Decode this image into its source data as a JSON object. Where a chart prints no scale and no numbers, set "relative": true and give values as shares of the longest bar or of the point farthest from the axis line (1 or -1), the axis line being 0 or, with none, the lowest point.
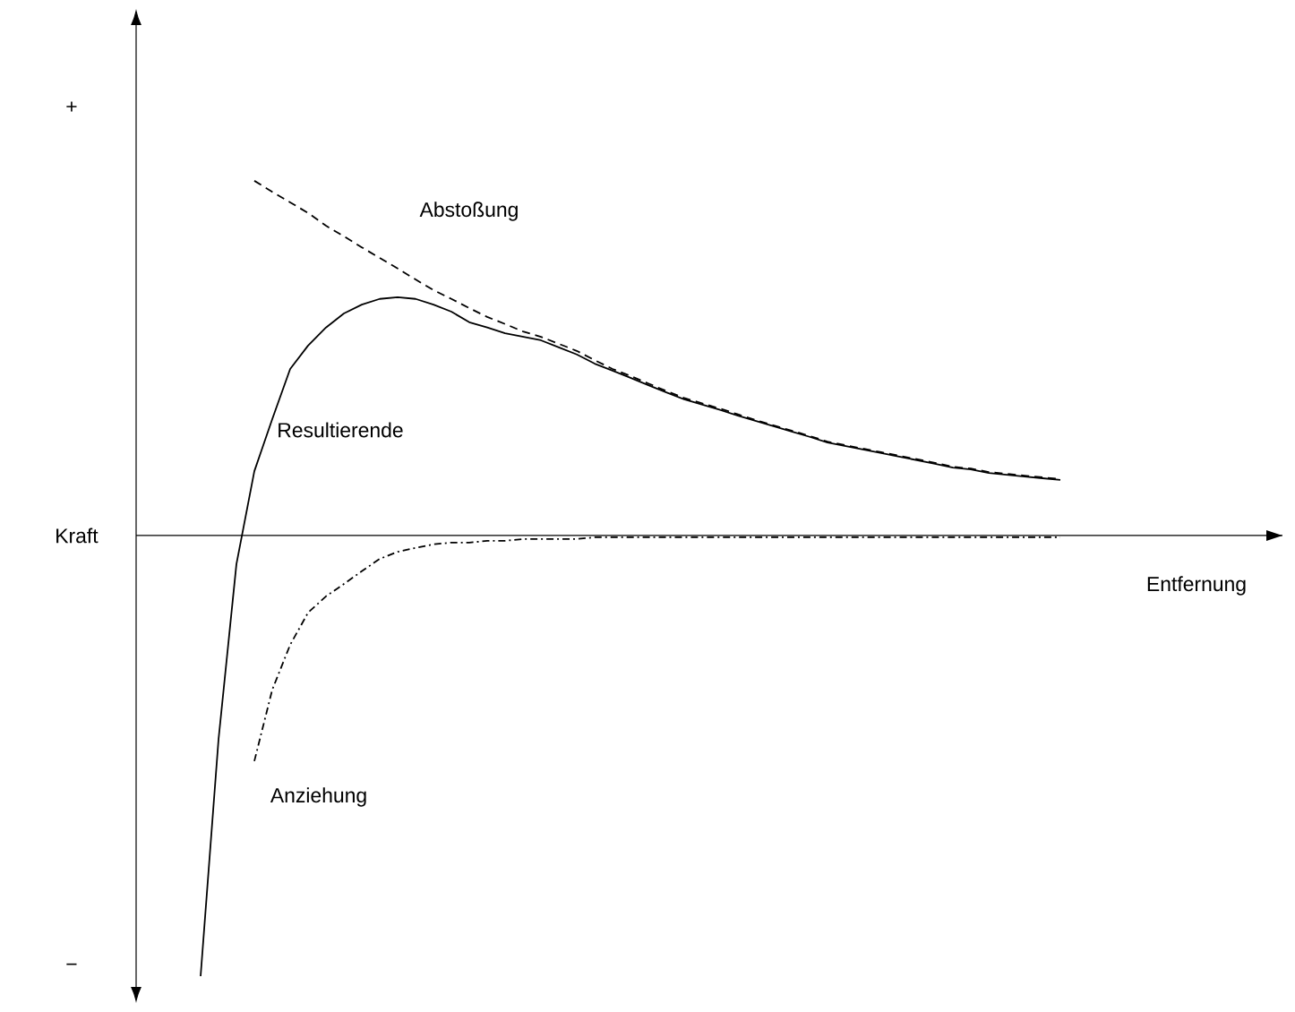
{
  "chart_data": {
    "type": "line",
    "relative": true,
    "ylabel": "Kraft",
    "annotations": [
      "+",
      "−",
      "Entfernung"
    ],
    "categories": [
      null,
      null,
      null,
      null,
      null,
      null,
      null,
      null,
      null,
      null,
      null,
      null,
      null,
      null,
      null,
      null,
      null,
      null,
      null,
      null,
      null,
      null,
      null,
      null,
      null,
      null,
      null,
      null,
      null,
      null,
      null,
      null,
      null,
      null,
      null,
      null,
      null,
      null,
      null,
      null,
      null,
      null,
      null,
      null,
      null,
      null,
      null,
      null,
      null
    ],
    "series": [
      {
        "name": "Resultierende",
        "color": "#000000",
        "line_style": "solid",
        "values": [
          -1.0,
          -0.463,
          -0.065,
          0.146,
          0.264,
          0.378,
          0.431,
          0.472,
          0.504,
          0.524,
          0.537,
          0.541,
          0.537,
          0.524,
          0.508,
          0.484,
          0.472,
          0.459,
          0.451,
          0.443,
          0.427,
          0.411,
          0.39,
          0.374,
          0.358,
          0.341,
          0.325,
          0.309,
          0.297,
          0.285,
          0.272,
          0.26,
          0.248,
          0.236,
          0.224,
          0.211,
          0.203,
          0.195,
          0.187,
          0.179,
          0.171,
          0.163,
          0.154,
          0.15,
          0.142,
          0.138,
          0.134,
          0.13,
          0.126
        ]
      },
      {
        "name": "Abstoßung",
        "color": "#000000",
        "line_style": "dashed",
        "values": [
          null,
          null,
          null,
          0.805,
          0.78,
          0.756,
          0.732,
          0.703,
          0.679,
          0.654,
          0.63,
          0.606,
          0.581,
          0.557,
          0.537,
          0.516,
          0.496,
          0.48,
          0.463,
          0.451,
          0.435,
          0.419,
          0.398,
          0.378,
          0.362,
          0.345,
          0.328,
          0.312,
          0.3,
          0.288,
          0.275,
          0.262,
          0.25,
          0.238,
          0.226,
          0.213,
          0.205,
          0.197,
          0.189,
          0.181,
          0.173,
          0.165,
          0.156,
          0.152,
          0.144,
          0.14,
          0.136,
          0.132,
          0.128
        ]
      },
      {
        "name": "Anziehung",
        "color": "#000000",
        "line_style": "dashdot",
        "values": [
          null,
          null,
          null,
          -0.512,
          -0.35,
          -0.248,
          -0.175,
          -0.138,
          -0.11,
          -0.081,
          -0.053,
          -0.037,
          -0.028,
          -0.02,
          -0.016,
          -0.016,
          -0.012,
          -0.012,
          -0.008,
          -0.008,
          -0.008,
          -0.008,
          -0.004,
          -0.004,
          -0.004,
          -0.004,
          -0.004,
          -0.004,
          -0.004,
          -0.004,
          -0.004,
          -0.004,
          -0.004,
          -0.004,
          -0.004,
          -0.004,
          -0.004,
          -0.004,
          -0.004,
          -0.004,
          -0.004,
          -0.004,
          -0.004,
          -0.004,
          -0.004,
          -0.004,
          -0.004,
          -0.004,
          -0.004
        ]
      }
    ]
  }
}
